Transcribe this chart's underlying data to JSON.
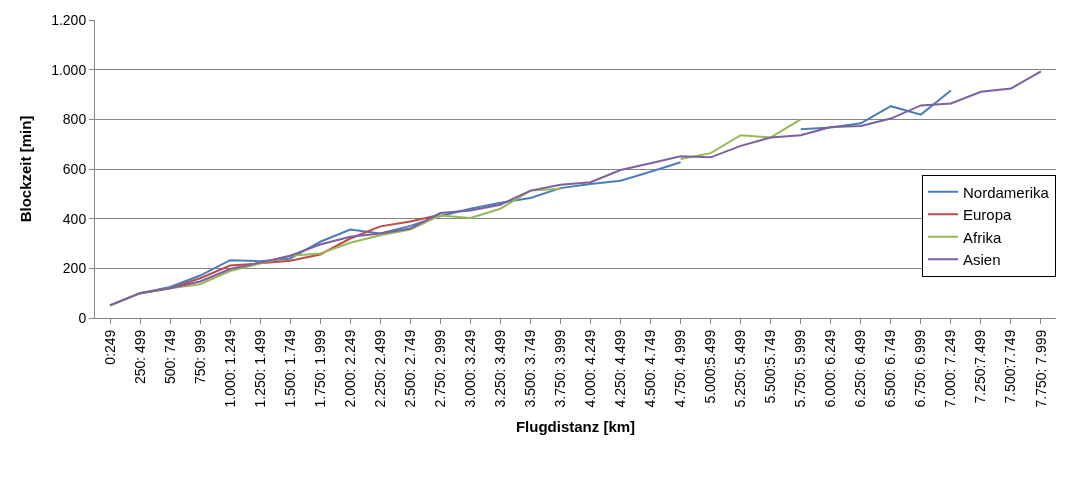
{
  "chart_data": {
    "type": "line",
    "xlabel": "Flugdistanz [km]",
    "ylabel": "Blockzeit [min]",
    "categories": [
      "0:249",
      "250: 499",
      "500: 749",
      "750: 999",
      "1.000: 1.249",
      "1.250: 1.499",
      "1.500: 1.749",
      "1.750: 1.999",
      "2.000: 2.249",
      "2.250: 2.499",
      "2.500: 2.749",
      "2.750: 2.999",
      "3.000: 3.249",
      "3.250: 3.499",
      "3.500: 3.749",
      "3.750: 3.999",
      "4.000: 4.249",
      "4.250: 4.499",
      "4.500: 4.749",
      "4.750: 4.999",
      "5.000:5.499",
      "5.250: 5.499",
      "5.500:5.749",
      "5.750: 5.999",
      "6.000: 6.249",
      "6.250: 6.499",
      "6.500: 6.749",
      "6.750: 6.999",
      "7.000: 7.249",
      "7.250:7.499",
      "7.500:7.749",
      "7.750: 7.999"
    ],
    "series": [
      {
        "name": "Nordamerika",
        "color": "#4a7ebb",
        "values": [
          51,
          100,
          125,
          171,
          233,
          229,
          240,
          307,
          356,
          340,
          371,
          411,
          440,
          464,
          483,
          523,
          540,
          553,
          589,
          627,
          null,
          null,
          null,
          760,
          767,
          784,
          853,
          819,
          916,
          null,
          null,
          null
        ]
      },
      {
        "name": "Europa",
        "color": "#be4b48",
        "values": [
          51,
          100,
          120,
          160,
          211,
          220,
          231,
          256,
          320,
          369,
          389,
          416,
          null,
          null,
          null,
          null,
          null,
          null,
          null,
          null,
          null,
          null,
          null,
          null,
          null,
          null,
          null,
          null,
          null,
          null,
          null,
          null
        ]
      },
      {
        "name": "Afrika",
        "color": "#98b954",
        "values": [
          51,
          100,
          120,
          136,
          189,
          220,
          251,
          260,
          303,
          333,
          356,
          413,
          403,
          440,
          513,
          520,
          null,
          null,
          null,
          640,
          664,
          736,
          727,
          800,
          null,
          null,
          null,
          null,
          null,
          null,
          null,
          null
        ]
      },
      {
        "name": "Asien",
        "color": "#7d60a0",
        "values": [
          51,
          100,
          120,
          147,
          197,
          223,
          251,
          296,
          327,
          340,
          360,
          423,
          433,
          456,
          513,
          537,
          547,
          596,
          623,
          651,
          647,
          693,
          727,
          736,
          769,
          773,
          803,
          856,
          864,
          911,
          924,
          993
        ]
      }
    ],
    "ylim": [
      0,
      1200
    ],
    "yticks": [
      0,
      200,
      400,
      600,
      800,
      {
        "value": 1000,
        "label": "1.000"
      },
      {
        "value": 1200,
        "label": "1.200"
      }
    ],
    "grid": "y",
    "legend": "right",
    "marker": "none",
    "line_style": "solid"
  }
}
